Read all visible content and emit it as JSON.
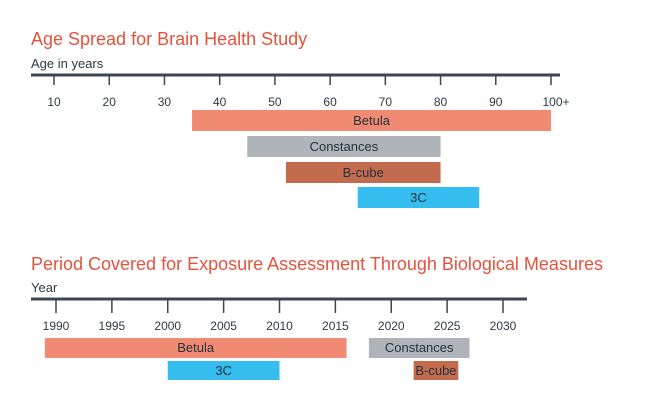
{
  "chart_data": [
    {
      "type": "bar",
      "orientation": "horizontal-range",
      "title": "Age Spread for Brain Health Study",
      "xlabel": "Age in years",
      "xlim": [
        5,
        105
      ],
      "ticks": [
        "10",
        "20",
        "30",
        "40",
        "50",
        "60",
        "70",
        "80",
        "90",
        "100+"
      ],
      "tick_values": [
        10,
        20,
        30,
        40,
        50,
        60,
        70,
        80,
        90,
        100
      ],
      "series": [
        {
          "name": "Betula",
          "start": 35,
          "end": 100,
          "color": "#f08a72"
        },
        {
          "name": "Constances",
          "start": 45,
          "end": 80,
          "color": "#aeb4ba"
        },
        {
          "name": "B-cube",
          "start": 52,
          "end": 80,
          "color": "#c26b4f"
        },
        {
          "name": "3C",
          "start": 65,
          "end": 87,
          "color": "#35bdf0"
        }
      ]
    },
    {
      "type": "bar",
      "orientation": "horizontal-range",
      "title": "Period Covered for Exposure Assessment Through Biological Measures",
      "xlabel": "Year",
      "xlim": [
        1987,
        2032
      ],
      "ticks": [
        "1990",
        "1995",
        "2000",
        "2005",
        "2010",
        "2015",
        "2020",
        "2025",
        "2030"
      ],
      "tick_values": [
        1990,
        1995,
        2000,
        2005,
        2010,
        2015,
        2020,
        2025,
        2030
      ],
      "series": [
        {
          "name": "Betula",
          "start": 1989,
          "end": 2016,
          "color": "#f08a72",
          "row": 0
        },
        {
          "name": "Constances",
          "start": 2018,
          "end": 2027,
          "color": "#aeb4ba",
          "row": 0
        },
        {
          "name": "3C",
          "start": 2000,
          "end": 2010,
          "color": "#35bdf0",
          "row": 1
        },
        {
          "name": "B-cube",
          "start": 2022,
          "end": 2026,
          "color": "#c26b4f",
          "row": 1
        }
      ]
    }
  ]
}
